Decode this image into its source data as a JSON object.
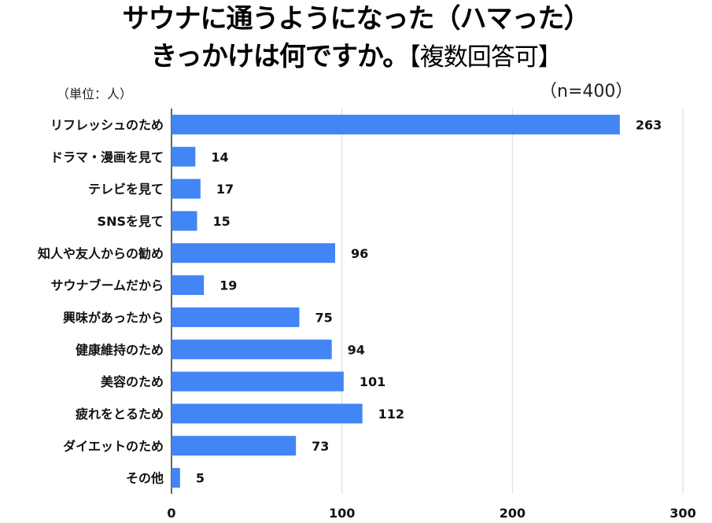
{
  "header": {
    "title_line1": "サウナに通うようになった（ハマった）",
    "title_line2": "きっかけは何ですか。",
    "title_note": "【複数回答可】",
    "unit": "（単位：人）",
    "sample": "（n=400）"
  },
  "colors": {
    "bar": "#4285f4",
    "grid": "#d9d9d9",
    "axis": "#333333"
  },
  "chart_data": {
    "type": "bar",
    "orientation": "horizontal",
    "title": "サウナに通うようになった（ハマった）きっかけは何ですか。【複数回答可】",
    "categories": [
      "リフレッシュのため",
      "ドラマ・漫画を見て",
      "テレビを見て",
      "SNSを見て",
      "知人や友人からの勧め",
      "サウナブームだから",
      "興味があったから",
      "健康維持のため",
      "美容のため",
      "疲れをとるため",
      "ダイエットのため",
      "その他"
    ],
    "values": [
      263,
      14,
      17,
      15,
      96,
      19,
      75,
      94,
      101,
      112,
      73,
      5
    ],
    "xlim": [
      0,
      300
    ],
    "xticks": [
      0,
      100,
      200,
      300
    ],
    "grid": true,
    "legend": "none"
  }
}
